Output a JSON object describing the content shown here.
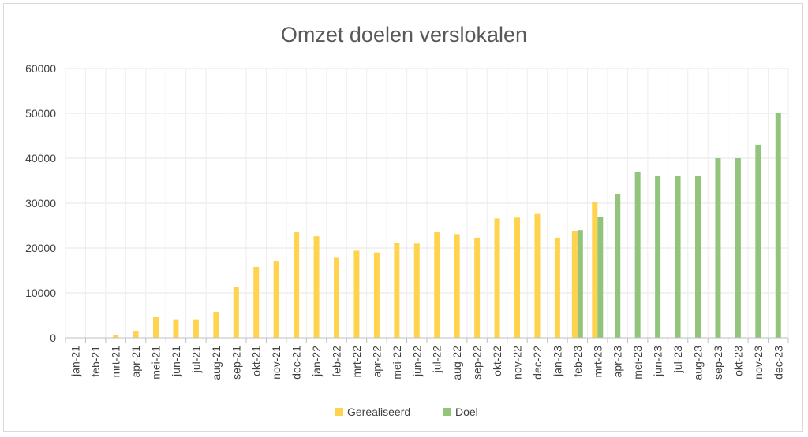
{
  "chart_data": {
    "type": "bar",
    "title": "Omzet doelen verslokalen",
    "xlabel": "",
    "ylabel": "",
    "ylim": [
      0,
      60000
    ],
    "yticks": [
      0,
      10000,
      20000,
      30000,
      40000,
      50000,
      60000
    ],
    "grid": true,
    "legend_position": "bottom",
    "categories": [
      "jan-21",
      "feb-21",
      "mrt-21",
      "apr-21",
      "mei-21",
      "jun-21",
      "jul-21",
      "aug-21",
      "sep-21",
      "okt-21",
      "nov-21",
      "dec-21",
      "jan-22",
      "feb-22",
      "mrt-22",
      "apr-22",
      "mei-22",
      "jun-22",
      "jul-22",
      "aug-22",
      "sep-22",
      "okt-22",
      "nov-22",
      "dec-22",
      "jan-23",
      "feb-23",
      "mrt-23",
      "apr-23",
      "mei-23",
      "jun-23",
      "jul-23",
      "aug-23",
      "sep-23",
      "okt-23",
      "nov-23",
      "dec-23"
    ],
    "series": [
      {
        "name": "Gerealiseerd",
        "color": "#ffd34d",
        "values": [
          0,
          0,
          600,
          1500,
          4600,
          4100,
          4100,
          5800,
          11300,
          15800,
          17000,
          23500,
          22600,
          17800,
          19400,
          19000,
          21200,
          21000,
          23500,
          23100,
          22300,
          26600,
          26800,
          27600,
          22300,
          23800,
          30200,
          null,
          null,
          null,
          null,
          null,
          null,
          null,
          null,
          null
        ]
      },
      {
        "name": "Doel",
        "color": "#92c47c",
        "values": [
          null,
          null,
          null,
          null,
          null,
          null,
          null,
          null,
          null,
          null,
          null,
          null,
          null,
          null,
          null,
          null,
          null,
          null,
          null,
          null,
          null,
          null,
          null,
          null,
          null,
          24000,
          27000,
          32000,
          37000,
          36000,
          36000,
          36000,
          40000,
          40000,
          43000,
          50000
        ]
      }
    ]
  }
}
